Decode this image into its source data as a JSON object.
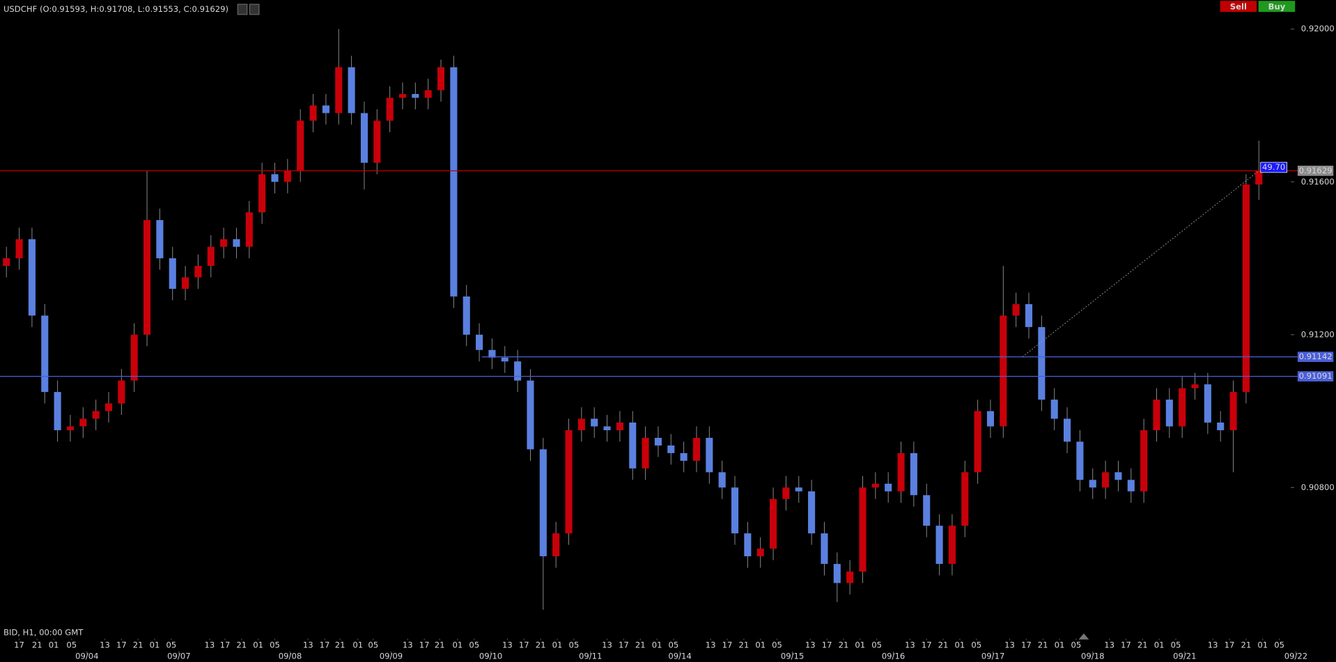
{
  "chart_data": {
    "type": "candlestick",
    "title": "USDCHF (O:0.91593, H:0.91708, L:0.91553, C:0.91629)",
    "status_label": "BID, H1, 00:00 GMT",
    "up_color": "#c8000a",
    "down_color": "#5a80e0",
    "open": [
      0.9138,
      0.914,
      0.9145,
      0.9125,
      0.9105,
      0.9095,
      0.9096,
      0.9098,
      0.91,
      0.9102,
      0.9108,
      0.912,
      0.915,
      0.914,
      0.9132,
      0.9135,
      0.9138,
      0.9143,
      0.9145,
      0.9143,
      0.9152,
      0.9162,
      0.916,
      0.9163,
      0.9176,
      0.918,
      0.9178,
      0.919,
      0.9178,
      0.9165,
      0.9176,
      0.9182,
      0.9183,
      0.9182,
      0.9184,
      0.919,
      0.913,
      0.912,
      0.9116,
      0.9114,
      0.9113,
      0.9108,
      0.909,
      0.9062,
      0.9068,
      0.9095,
      0.9098,
      0.9096,
      0.9095,
      0.9097,
      0.9085,
      0.9093,
      0.9091,
      0.9089,
      0.9087,
      0.9093,
      0.9084,
      0.908,
      0.9068,
      0.9062,
      0.9064,
      0.9077,
      0.908,
      0.9079,
      0.9068,
      0.906,
      0.9055,
      0.9058,
      0.908,
      0.9081,
      0.9079,
      0.9089,
      0.9078,
      0.907,
      0.906,
      0.907,
      0.9084,
      0.91,
      0.9096,
      0.9125,
      0.9128,
      0.9122,
      0.9103,
      0.9098,
      0.9092,
      0.9082,
      0.908,
      0.9084,
      0.9082,
      0.9079,
      0.9095,
      0.9103,
      0.9096,
      0.9106,
      0.9107,
      0.9097,
      0.9095,
      0.9105,
      0.91593
    ],
    "high": [
      0.9143,
      0.9148,
      0.9148,
      0.9128,
      0.9108,
      0.9099,
      0.9101,
      0.9103,
      0.9105,
      0.9111,
      0.9123,
      0.9163,
      0.9153,
      0.9143,
      0.9138,
      0.9141,
      0.9146,
      0.9148,
      0.9148,
      0.9155,
      0.9165,
      0.9165,
      0.9166,
      0.9179,
      0.9183,
      0.9183,
      0.92,
      0.9193,
      0.9181,
      0.9179,
      0.9185,
      0.9186,
      0.9186,
      0.9187,
      0.9192,
      0.9193,
      0.9133,
      0.9123,
      0.9119,
      0.9117,
      0.9116,
      0.9111,
      0.9093,
      0.9071,
      0.9098,
      0.9101,
      0.9101,
      0.9099,
      0.91,
      0.91,
      0.9096,
      0.9096,
      0.9094,
      0.9092,
      0.9096,
      0.9096,
      0.9087,
      0.9083,
      0.9071,
      0.9067,
      0.908,
      0.9083,
      0.9083,
      0.9082,
      0.9071,
      0.9063,
      0.9061,
      0.9083,
      0.9084,
      0.9084,
      0.9092,
      0.9092,
      0.9081,
      0.9073,
      0.9073,
      0.9087,
      0.9103,
      0.9103,
      0.9138,
      0.9131,
      0.9131,
      0.9125,
      0.9106,
      0.9101,
      0.9095,
      0.9085,
      0.9087,
      0.9087,
      0.9085,
      0.9098,
      0.9106,
      0.9106,
      0.9109,
      0.911,
      0.911,
      0.91,
      0.9108,
      0.9162,
      0.91708
    ],
    "low": [
      0.9135,
      0.9137,
      0.9122,
      0.9102,
      0.9092,
      0.9092,
      0.9093,
      0.9095,
      0.9097,
      0.9099,
      0.9105,
      0.9117,
      0.9137,
      0.9129,
      0.9129,
      0.9132,
      0.9135,
      0.914,
      0.914,
      0.914,
      0.9149,
      0.9157,
      0.9157,
      0.916,
      0.9173,
      0.9175,
      0.9175,
      0.9175,
      0.9158,
      0.9162,
      0.9173,
      0.9179,
      0.9179,
      0.9179,
      0.9181,
      0.9127,
      0.9117,
      0.9113,
      0.9111,
      0.911,
      0.9105,
      0.9087,
      0.9048,
      0.9059,
      0.9065,
      0.9092,
      0.9093,
      0.9092,
      0.9092,
      0.9082,
      0.9082,
      0.9088,
      0.9086,
      0.9084,
      0.9084,
      0.9081,
      0.9077,
      0.9065,
      0.9059,
      0.9059,
      0.9061,
      0.9074,
      0.9076,
      0.9065,
      0.9057,
      0.905,
      0.9052,
      0.9055,
      0.9077,
      0.9076,
      0.9076,
      0.9075,
      0.9067,
      0.9057,
      0.9057,
      0.9067,
      0.9081,
      0.9093,
      0.9093,
      0.9122,
      0.9119,
      0.91,
      0.9095,
      0.9089,
      0.9079,
      0.9077,
      0.9077,
      0.9079,
      0.9076,
      0.9076,
      0.9092,
      0.9093,
      0.9093,
      0.9103,
      0.9094,
      0.9092,
      0.9084,
      0.9102,
      0.91553
    ],
    "close": [
      0.914,
      0.9145,
      0.9125,
      0.9105,
      0.9095,
      0.9096,
      0.9098,
      0.91,
      0.9102,
      0.9108,
      0.912,
      0.915,
      0.914,
      0.9132,
      0.9135,
      0.9138,
      0.9143,
      0.9145,
      0.9143,
      0.9152,
      0.9162,
      0.916,
      0.9163,
      0.9176,
      0.918,
      0.9178,
      0.919,
      0.9178,
      0.9165,
      0.9176,
      0.9182,
      0.9183,
      0.9182,
      0.9184,
      0.919,
      0.913,
      0.912,
      0.9116,
      0.9114,
      0.9113,
      0.9108,
      0.909,
      0.9062,
      0.9068,
      0.9095,
      0.9098,
      0.9096,
      0.9095,
      0.9097,
      0.9085,
      0.9093,
      0.9091,
      0.9089,
      0.9087,
      0.9093,
      0.9084,
      0.908,
      0.9068,
      0.9062,
      0.9064,
      0.9077,
      0.908,
      0.9079,
      0.9068,
      0.906,
      0.9055,
      0.9058,
      0.908,
      0.9081,
      0.9079,
      0.9089,
      0.9078,
      0.907,
      0.906,
      0.907,
      0.9084,
      0.91,
      0.9096,
      0.9125,
      0.9128,
      0.9122,
      0.9103,
      0.9098,
      0.9092,
      0.9082,
      0.908,
      0.9084,
      0.9082,
      0.9079,
      0.9095,
      0.9103,
      0.9096,
      0.9106,
      0.9107,
      0.9097,
      0.9095,
      0.9105,
      0.91593,
      0.91629
    ],
    "xlim": [
      -0.5,
      100.5
    ],
    "ylim": [
      0.90438,
      0.92076
    ],
    "yticks": [
      {
        "value": 0.908,
        "label": "0.90800"
      },
      {
        "value": 0.912,
        "label": "0.91200"
      },
      {
        "value": 0.916,
        "label": "0.91600"
      },
      {
        "value": 0.92,
        "label": "0.92000"
      }
    ],
    "xticks": [
      {
        "value": 6.3,
        "label": "09/04"
      },
      {
        "value": 13.5,
        "label": "09/07"
      },
      {
        "value": 22.2,
        "label": "09/08"
      },
      {
        "value": 30.1,
        "label": "09/09"
      },
      {
        "value": 37.9,
        "label": "09/10"
      },
      {
        "value": 45.7,
        "label": "09/11"
      },
      {
        "value": 52.7,
        "label": "09/14"
      },
      {
        "value": 61.5,
        "label": "09/15"
      },
      {
        "value": 69.4,
        "label": "09/16"
      },
      {
        "value": 77.2,
        "label": "09/17"
      },
      {
        "value": 85.0,
        "label": "09/18"
      },
      {
        "value": 92.2,
        "label": "09/21"
      },
      {
        "value": 100.9,
        "label": "09/22"
      }
    ],
    "hour_ticks": [
      {
        "value": 1.0,
        "label": "17"
      },
      {
        "value": 2.4,
        "label": "21"
      },
      {
        "value": 3.7,
        "label": "01"
      },
      {
        "value": 5.1,
        "label": "05"
      },
      {
        "value": 7.7,
        "label": "13"
      },
      {
        "value": 9.0,
        "label": "17"
      },
      {
        "value": 10.3,
        "label": "21"
      },
      {
        "value": 11.6,
        "label": "01"
      },
      {
        "value": 12.9,
        "label": "05"
      },
      {
        "value": 15.9,
        "label": "13"
      },
      {
        "value": 17.1,
        "label": "17"
      },
      {
        "value": 18.4,
        "label": "21"
      },
      {
        "value": 19.7,
        "label": "01"
      },
      {
        "value": 21.0,
        "label": "05"
      },
      {
        "value": 23.6,
        "label": "13"
      },
      {
        "value": 24.9,
        "label": "17"
      },
      {
        "value": 26.1,
        "label": "21"
      },
      {
        "value": 27.5,
        "label": "01"
      },
      {
        "value": 28.7,
        "label": "05"
      },
      {
        "value": 31.4,
        "label": "13"
      },
      {
        "value": 32.7,
        "label": "17"
      },
      {
        "value": 33.9,
        "label": "21"
      },
      {
        "value": 35.3,
        "label": "01"
      },
      {
        "value": 36.6,
        "label": "05"
      },
      {
        "value": 39.2,
        "label": "13"
      },
      {
        "value": 40.5,
        "label": "17"
      },
      {
        "value": 41.8,
        "label": "21"
      },
      {
        "value": 43.1,
        "label": "01"
      },
      {
        "value": 44.4,
        "label": "05"
      },
      {
        "value": 47.0,
        "label": "13"
      },
      {
        "value": 48.3,
        "label": "17"
      },
      {
        "value": 49.6,
        "label": "21"
      },
      {
        "value": 50.9,
        "label": "01"
      },
      {
        "value": 52.2,
        "label": "05"
      },
      {
        "value": 55.1,
        "label": "13"
      },
      {
        "value": 56.4,
        "label": "17"
      },
      {
        "value": 57.7,
        "label": "21"
      },
      {
        "value": 59.0,
        "label": "01"
      },
      {
        "value": 60.3,
        "label": "05"
      },
      {
        "value": 62.9,
        "label": "13"
      },
      {
        "value": 64.2,
        "label": "17"
      },
      {
        "value": 65.5,
        "label": "21"
      },
      {
        "value": 66.8,
        "label": "01"
      },
      {
        "value": 68.1,
        "label": "05"
      },
      {
        "value": 70.7,
        "label": "13"
      },
      {
        "value": 72.0,
        "label": "17"
      },
      {
        "value": 73.3,
        "label": "21"
      },
      {
        "value": 74.6,
        "label": "01"
      },
      {
        "value": 75.9,
        "label": "05"
      },
      {
        "value": 78.5,
        "label": "13"
      },
      {
        "value": 79.8,
        "label": "17"
      },
      {
        "value": 81.1,
        "label": "21"
      },
      {
        "value": 82.4,
        "label": "01"
      },
      {
        "value": 83.7,
        "label": "05"
      },
      {
        "value": 86.3,
        "label": "13"
      },
      {
        "value": 87.6,
        "label": "17"
      },
      {
        "value": 88.9,
        "label": "21"
      },
      {
        "value": 90.2,
        "label": "01"
      },
      {
        "value": 91.5,
        "label": "05"
      },
      {
        "value": 94.4,
        "label": "13"
      },
      {
        "value": 95.7,
        "label": "17"
      },
      {
        "value": 97.0,
        "label": "21"
      },
      {
        "value": 98.3,
        "label": "01"
      },
      {
        "value": 99.6,
        "label": "05"
      }
    ],
    "price_lines": [
      {
        "value": 0.91629,
        "label": "0.91629",
        "color": "#c00000",
        "label_color": "#8c8c8c",
        "start": -0.5
      },
      {
        "value": 0.91142,
        "label": "0.91142",
        "color": "#4a5fd8",
        "label_color": "#4a5fd8",
        "start": 37.2
      },
      {
        "value": 0.91091,
        "label": "0.91091",
        "color": "#4a5fd8",
        "label_color": "#4a5fd8",
        "start": -0.5
      }
    ],
    "trendline": {
      "x": [
        79.5,
        98.0
      ],
      "y": [
        0.91142,
        0.91629
      ],
      "label": "49.70",
      "color": "#999999"
    },
    "buttons": [
      {
        "label": "Sell",
        "color": "#c00000"
      },
      {
        "label": "Buy",
        "color": "#1e9a1e"
      }
    ]
  }
}
